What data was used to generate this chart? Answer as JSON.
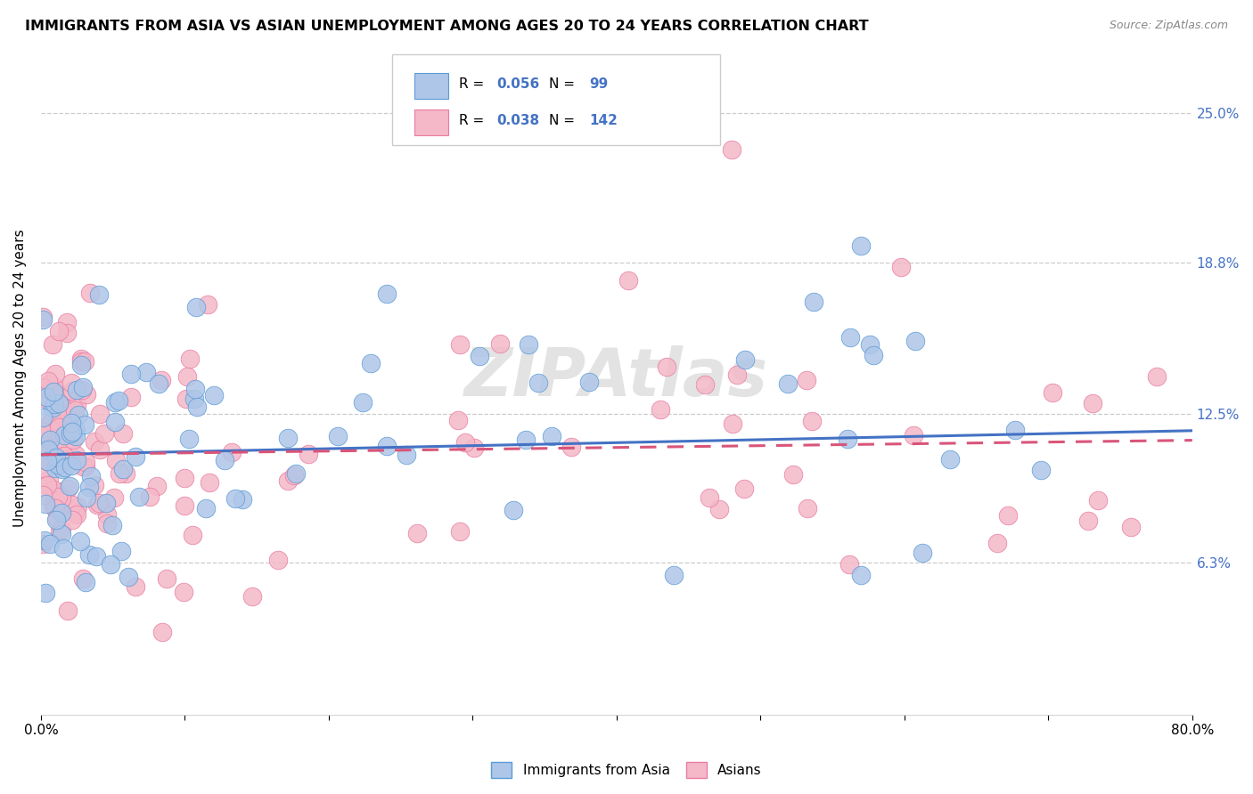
{
  "title": "IMMIGRANTS FROM ASIA VS ASIAN UNEMPLOYMENT AMONG AGES 20 TO 24 YEARS CORRELATION CHART",
  "source": "Source: ZipAtlas.com",
  "ylabel": "Unemployment Among Ages 20 to 24 years",
  "xlim": [
    0.0,
    0.8
  ],
  "ylim": [
    0.0,
    0.28
  ],
  "yticks": [
    0.063,
    0.125,
    0.188,
    0.25
  ],
  "ytick_labels": [
    "6.3%",
    "12.5%",
    "18.8%",
    "25.0%"
  ],
  "series1_color": "#aec6e8",
  "series1_edge": "#5b9bd5",
  "series2_color": "#f4b8c8",
  "series2_edge": "#e87ca0",
  "trend1_color": "#4472c4",
  "trend2_color": "#d9557a",
  "label_color": "#4472c4",
  "R1": "0.056",
  "N1": "99",
  "R2": "0.038",
  "N2": "142",
  "trend1_x0": 0.0,
  "trend1_y0": 0.108,
  "trend1_x1": 0.8,
  "trend1_y1": 0.118,
  "trend2_x0": 0.0,
  "trend2_y0": 0.108,
  "trend2_x1": 0.8,
  "trend2_y1": 0.114,
  "watermark_text": "ZIPAtlas",
  "bottom_legend": [
    "Immigrants from Asia",
    "Asians"
  ]
}
